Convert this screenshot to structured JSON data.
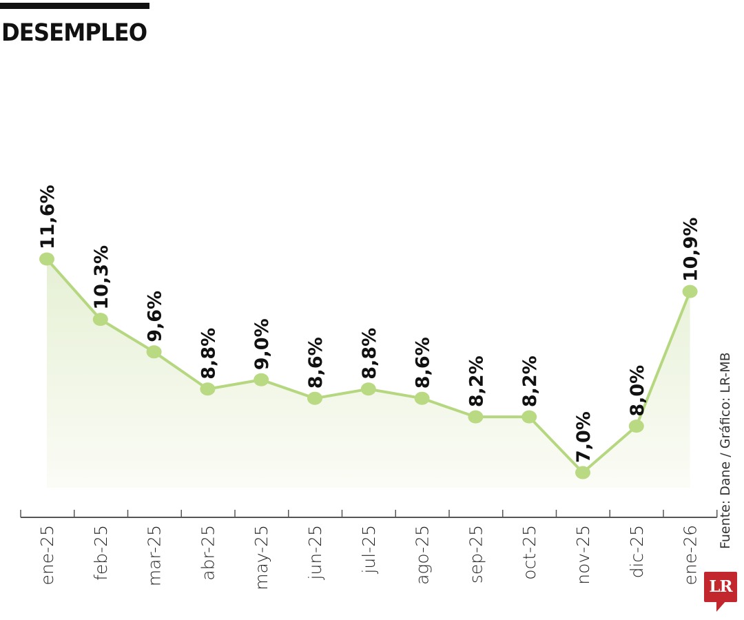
{
  "header": {
    "title": "DESEMPLEO"
  },
  "footer": {
    "source": "Fuente: Dane / Gráfico: LR-MB",
    "logo": "LR"
  },
  "colors": {
    "line": "#b5d77f",
    "marker": "#b9d982",
    "fill_top": "#e6f0d5",
    "fill_bottom": "#fbfcf6",
    "axis": "#555555",
    "label": "#111111",
    "brand": "#c1272d"
  },
  "chart_data": {
    "type": "line",
    "title": "DESEMPLEO",
    "xlabel": "",
    "ylabel": "",
    "categories": [
      "ene-25",
      "feb-25",
      "mar-25",
      "abr-25",
      "may-25",
      "jun-25",
      "jul-25",
      "ago-25",
      "sep-25",
      "oct-25",
      "nov-25",
      "dic-25",
      "ene-26"
    ],
    "values": [
      11.6,
      10.3,
      9.6,
      8.8,
      9.0,
      8.6,
      8.8,
      8.6,
      8.2,
      8.2,
      7.0,
      8.0,
      10.9
    ],
    "labels": [
      "11,6%",
      "10,3%",
      "9,6%",
      "8,8%",
      "9,0%",
      "8,6%",
      "8,8%",
      "8,6%",
      "8,2%",
      "8,2%",
      "7,0%",
      "8,0%",
      "10,9%"
    ],
    "unit": "%",
    "grid": false,
    "legend": "none",
    "area_fill": true,
    "source": "Fuente: Dane / Gráfico: LR-MB"
  }
}
